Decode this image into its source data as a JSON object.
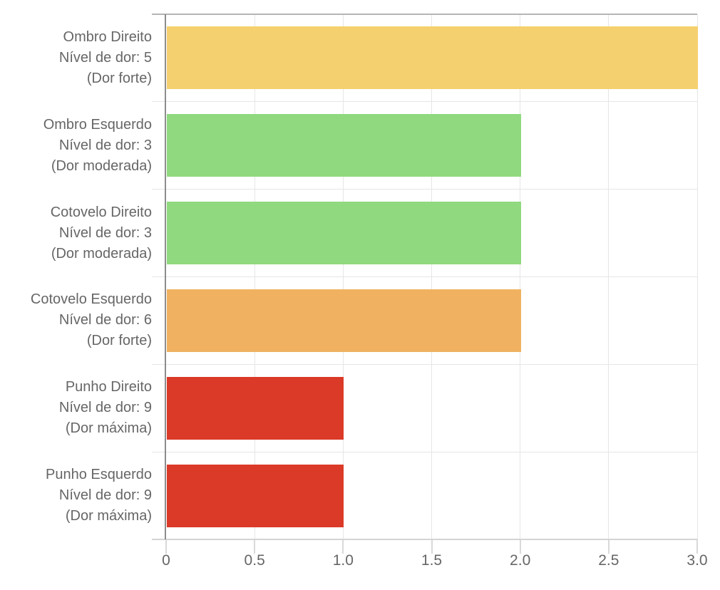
{
  "chart_data": {
    "type": "bar",
    "orientation": "horizontal",
    "title": "",
    "xlabel": "",
    "ylabel": "",
    "xlim": [
      0,
      3
    ],
    "x_ticks": [
      0,
      0.5,
      1,
      1.5,
      2,
      2.5,
      3
    ],
    "x_tick_labels": [
      "0",
      "0.5",
      "1.0",
      "1.5",
      "2.0",
      "2.5",
      "3.0"
    ],
    "grid": true,
    "legend": false,
    "categories": [
      "Ombro Direito",
      "Ombro Esquerdo",
      "Cotovelo Direito",
      "Cotovelo Esquerdo",
      "Punho Direito",
      "Punho Esquerdo"
    ],
    "values": [
      3,
      2,
      2,
      2,
      1,
      1
    ],
    "bars": [
      {
        "label_lines": [
          "Ombro Direito",
          "Nível de dor: 5",
          "(Dor forte)"
        ],
        "value": 3,
        "color": "#F5D06E"
      },
      {
        "label_lines": [
          "Ombro Esquerdo",
          "Nível de dor: 3",
          "(Dor moderada)"
        ],
        "value": 2,
        "color": "#90D97E"
      },
      {
        "label_lines": [
          "Cotovelo Direito",
          "Nível de dor: 3",
          "(Dor moderada)"
        ],
        "value": 2,
        "color": "#90D97E"
      },
      {
        "label_lines": [
          "Cotovelo Esquerdo",
          "Nível de dor: 6",
          "(Dor forte)"
        ],
        "value": 2,
        "color": "#F0B261"
      },
      {
        "label_lines": [
          "Punho Direito",
          "Nível de dor: 9",
          "(Dor máxima)"
        ],
        "value": 1,
        "color": "#DB3A28"
      },
      {
        "label_lines": [
          "Punho Esquerdo",
          "Nível de dor: 9",
          "(Dor máxima)"
        ],
        "value": 1,
        "color": "#DB3A28"
      }
    ]
  },
  "colors": {
    "axis_line": "#8C8C8C",
    "top_border": "#B5B5B5",
    "bottom_border": "#D4D4D4",
    "gridline": "#E6E6E6",
    "tick": "#D9D9D9",
    "label_text": "#666666"
  }
}
